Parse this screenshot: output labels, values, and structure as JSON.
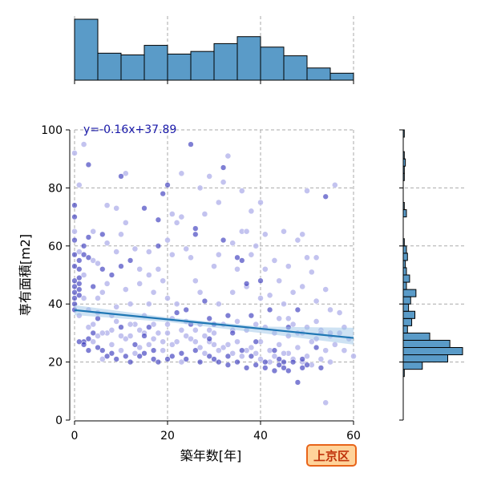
{
  "chart_data": {
    "type": "scatter",
    "title": "",
    "xlabel": "築年数[年]",
    "ylabel": "専有面積[m2]",
    "xlim": [
      0,
      60
    ],
    "ylim": [
      0,
      100
    ],
    "xticks": [
      0,
      20,
      40,
      60
    ],
    "yticks": [
      0,
      20,
      40,
      60,
      80,
      100
    ],
    "grid": true,
    "equation_text": "y=-0.16x+37.89",
    "badge_text": "上京区",
    "regression": {
      "slope": -0.16,
      "intercept": 37.89,
      "ci_band": {
        "x": [
          0,
          20,
          40,
          60
        ],
        "lower": [
          36.2,
          33.8,
          30.0,
          26.0
        ],
        "upper": [
          39.6,
          35.4,
          32.2,
          31.8
        ]
      }
    },
    "top_histogram": {
      "bins": [
        0,
        5,
        10,
        15,
        20,
        25,
        30,
        35,
        40,
        45,
        50,
        55,
        60
      ],
      "counts": [
        70,
        31,
        29,
        40,
        30,
        33,
        42,
        50,
        38,
        28,
        14,
        8
      ]
    },
    "right_histogram": {
      "bins": [
        0,
        2.5,
        5,
        7.5,
        10,
        12.5,
        15,
        17.5,
        20,
        22.5,
        25,
        27.5,
        30,
        32.5,
        35,
        37.5,
        40,
        42.5,
        45,
        47.5,
        50,
        52.5,
        55,
        57.5,
        60,
        62.5,
        65,
        67.5,
        70,
        72.5,
        75,
        77.5,
        80,
        82.5,
        85,
        87.5,
        90,
        92.5,
        95,
        97.5,
        100
      ],
      "counts": [
        0,
        0,
        0,
        0,
        0,
        0,
        1,
        18,
        42,
        56,
        44,
        25,
        4,
        8,
        11,
        5,
        7,
        12,
        3,
        6,
        3,
        2,
        4,
        3,
        1,
        0,
        0,
        0,
        3,
        1,
        0,
        0,
        0,
        1,
        1,
        2,
        1,
        0,
        0,
        1
      ],
      "max_count": 56
    },
    "points_dark": [
      [
        0,
        48
      ],
      [
        0,
        46
      ],
      [
        0,
        44
      ],
      [
        0,
        42
      ],
      [
        0,
        40
      ],
      [
        0,
        38
      ],
      [
        1,
        49
      ],
      [
        1,
        47
      ],
      [
        1,
        45
      ],
      [
        1,
        43
      ],
      [
        0,
        53
      ],
      [
        0,
        57
      ],
      [
        0,
        70
      ],
      [
        0,
        74
      ],
      [
        2,
        60
      ],
      [
        2,
        57
      ],
      [
        3,
        56
      ],
      [
        3,
        88
      ],
      [
        3,
        24
      ],
      [
        2,
        27
      ],
      [
        5,
        35
      ],
      [
        6,
        52
      ],
      [
        8,
        50
      ],
      [
        10,
        53
      ],
      [
        12,
        55
      ],
      [
        13,
        26
      ],
      [
        15,
        29
      ],
      [
        10,
        32
      ],
      [
        10,
        84
      ],
      [
        16,
        32
      ],
      [
        17,
        24
      ],
      [
        18,
        60
      ],
      [
        19,
        78
      ],
      [
        22,
        37
      ],
      [
        24,
        38
      ],
      [
        25,
        33
      ],
      [
        26,
        66
      ],
      [
        26,
        64
      ],
      [
        25,
        95
      ],
      [
        28,
        41
      ],
      [
        29,
        35
      ],
      [
        29,
        28
      ],
      [
        30,
        33
      ],
      [
        32,
        62
      ],
      [
        33,
        36
      ],
      [
        34,
        30
      ],
      [
        35,
        56
      ],
      [
        36,
        55
      ],
      [
        37,
        47
      ],
      [
        38,
        36
      ],
      [
        40,
        48
      ],
      [
        42,
        38
      ],
      [
        43,
        24
      ],
      [
        44,
        21
      ],
      [
        45,
        20
      ],
      [
        46,
        32
      ],
      [
        48,
        38
      ],
      [
        49,
        21
      ],
      [
        50,
        19
      ],
      [
        52,
        25
      ],
      [
        54,
        77
      ],
      [
        15,
        73
      ],
      [
        18,
        69
      ],
      [
        20,
        81
      ],
      [
        32,
        87
      ],
      [
        39,
        27
      ],
      [
        43,
        17
      ],
      [
        47,
        20
      ],
      [
        49,
        18
      ],
      [
        53,
        18
      ],
      [
        33,
        19
      ],
      [
        37,
        18
      ],
      [
        41,
        20
      ],
      [
        45,
        18
      ],
      [
        48,
        13
      ],
      [
        5,
        25
      ],
      [
        8,
        23
      ],
      [
        11,
        22
      ],
      [
        14,
        22
      ],
      [
        17,
        21
      ],
      [
        20,
        21
      ],
      [
        23,
        23
      ],
      [
        26,
        24
      ],
      [
        29,
        22
      ],
      [
        31,
        20
      ],
      [
        35,
        20
      ],
      [
        39,
        19
      ],
      [
        1,
        27
      ],
      [
        2,
        26
      ],
      [
        3,
        28
      ],
      [
        4,
        30
      ],
      [
        6,
        24
      ],
      [
        7,
        22
      ],
      [
        9,
        21
      ],
      [
        12,
        20
      ],
      [
        15,
        23
      ],
      [
        18,
        20
      ],
      [
        21,
        22
      ],
      [
        24,
        21
      ],
      [
        27,
        20
      ],
      [
        30,
        21
      ],
      [
        33,
        22
      ],
      [
        36,
        24
      ],
      [
        38,
        22
      ],
      [
        41,
        18
      ],
      [
        44,
        19
      ],
      [
        46,
        17
      ],
      [
        1,
        52
      ],
      [
        1,
        55
      ],
      [
        0,
        62
      ],
      [
        3,
        63
      ],
      [
        4,
        46
      ],
      [
        6,
        64
      ]
    ],
    "points_light": [
      [
        0,
        92
      ],
      [
        2,
        95
      ],
      [
        1,
        81
      ],
      [
        4,
        65
      ],
      [
        5,
        42
      ],
      [
        6,
        44
      ],
      [
        7,
        47
      ],
      [
        8,
        36
      ],
      [
        9,
        39
      ],
      [
        9,
        58
      ],
      [
        11,
        45
      ],
      [
        12,
        40
      ],
      [
        13,
        33
      ],
      [
        14,
        47
      ],
      [
        14,
        52
      ],
      [
        16,
        40
      ],
      [
        17,
        44
      ],
      [
        18,
        52
      ],
      [
        19,
        48
      ],
      [
        20,
        42
      ],
      [
        21,
        57
      ],
      [
        21,
        71
      ],
      [
        22,
        68
      ],
      [
        23,
        85
      ],
      [
        24,
        59
      ],
      [
        25,
        56
      ],
      [
        26,
        48
      ],
      [
        27,
        44
      ],
      [
        27,
        80
      ],
      [
        28,
        71
      ],
      [
        29,
        84
      ],
      [
        30,
        53
      ],
      [
        31,
        40
      ],
      [
        31,
        75
      ],
      [
        32,
        82
      ],
      [
        33,
        91
      ],
      [
        34,
        44
      ],
      [
        34,
        61
      ],
      [
        35,
        52
      ],
      [
        36,
        65
      ],
      [
        36,
        79
      ],
      [
        37,
        46
      ],
      [
        38,
        57
      ],
      [
        38,
        72
      ],
      [
        39,
        60
      ],
      [
        40,
        75
      ],
      [
        41,
        64
      ],
      [
        41,
        52
      ],
      [
        42,
        43
      ],
      [
        43,
        55
      ],
      [
        44,
        48
      ],
      [
        45,
        40
      ],
      [
        45,
        65
      ],
      [
        46,
        35
      ],
      [
        47,
        44
      ],
      [
        48,
        62
      ],
      [
        48,
        30
      ],
      [
        49,
        46
      ],
      [
        50,
        79
      ],
      [
        50,
        56
      ],
      [
        51,
        51
      ],
      [
        52,
        41
      ],
      [
        52,
        34
      ],
      [
        53,
        31
      ],
      [
        54,
        45
      ],
      [
        55,
        38
      ],
      [
        56,
        81
      ],
      [
        57,
        37
      ],
      [
        58,
        32
      ],
      [
        59,
        28
      ],
      [
        60,
        22
      ],
      [
        54,
        6
      ],
      [
        7,
        74
      ],
      [
        9,
        73
      ],
      [
        11,
        85
      ],
      [
        13,
        59
      ],
      [
        15,
        36
      ],
      [
        16,
        50
      ],
      [
        19,
        27
      ],
      [
        22,
        40
      ],
      [
        24,
        29
      ],
      [
        26,
        27
      ],
      [
        28,
        23
      ],
      [
        30,
        26
      ],
      [
        32,
        25
      ],
      [
        34,
        23
      ],
      [
        36,
        22
      ],
      [
        38,
        25
      ],
      [
        40,
        27
      ],
      [
        42,
        24
      ],
      [
        44,
        26
      ],
      [
        46,
        23
      ],
      [
        48,
        25
      ],
      [
        50,
        22
      ],
      [
        52,
        28
      ],
      [
        54,
        24
      ],
      [
        56,
        26
      ],
      [
        58,
        24
      ],
      [
        3,
        32
      ],
      [
        4,
        27
      ],
      [
        5,
        29
      ],
      [
        6,
        21
      ],
      [
        7,
        30
      ],
      [
        8,
        26
      ],
      [
        10,
        24
      ],
      [
        11,
        28
      ],
      [
        12,
        29
      ],
      [
        13,
        23
      ],
      [
        14,
        25
      ],
      [
        16,
        26
      ],
      [
        17,
        28
      ],
      [
        19,
        24
      ],
      [
        20,
        30
      ],
      [
        21,
        26
      ],
      [
        22,
        27
      ],
      [
        23,
        20
      ],
      [
        25,
        28
      ],
      [
        27,
        25
      ],
      [
        28,
        29
      ],
      [
        29,
        27
      ],
      [
        31,
        24
      ],
      [
        33,
        26
      ],
      [
        35,
        27
      ],
      [
        37,
        24
      ],
      [
        39,
        23
      ],
      [
        40,
        21
      ],
      [
        42,
        20
      ],
      [
        43,
        22
      ],
      [
        45,
        23
      ],
      [
        47,
        21
      ],
      [
        49,
        20
      ],
      [
        51,
        19
      ],
      [
        53,
        21
      ],
      [
        55,
        20
      ],
      [
        1,
        36
      ],
      [
        2,
        42
      ],
      [
        3,
        38
      ],
      [
        4,
        33
      ],
      [
        5,
        37
      ],
      [
        6,
        30
      ],
      [
        8,
        31
      ],
      [
        9,
        34
      ],
      [
        10,
        29
      ],
      [
        12,
        33
      ],
      [
        14,
        31
      ],
      [
        15,
        30
      ],
      [
        17,
        33
      ],
      [
        18,
        30
      ],
      [
        20,
        33
      ],
      [
        21,
        35
      ],
      [
        23,
        31
      ],
      [
        24,
        34
      ],
      [
        26,
        31
      ],
      [
        27,
        33
      ],
      [
        29,
        31
      ],
      [
        30,
        30
      ],
      [
        32,
        33
      ],
      [
        34,
        31
      ],
      [
        35,
        34
      ],
      [
        37,
        31
      ],
      [
        39,
        33
      ],
      [
        41,
        32
      ],
      [
        43,
        30
      ],
      [
        44,
        35
      ],
      [
        46,
        29
      ],
      [
        47,
        33
      ],
      [
        49,
        30
      ],
      [
        50,
        32
      ],
      [
        51,
        27
      ],
      [
        53,
        30
      ],
      [
        55,
        29
      ],
      [
        57,
        30
      ],
      [
        0,
        65
      ],
      [
        1,
        58
      ],
      [
        2,
        50
      ],
      [
        4,
        55
      ],
      [
        5,
        54
      ],
      [
        7,
        61
      ],
      [
        10,
        64
      ],
      [
        11,
        68
      ],
      [
        16,
        58
      ],
      [
        20,
        62
      ],
      [
        23,
        70
      ],
      [
        31,
        57
      ],
      [
        37,
        65
      ],
      [
        40,
        42
      ],
      [
        46,
        53
      ],
      [
        49,
        64
      ],
      [
        52,
        56
      ],
      [
        55,
        30
      ]
    ]
  },
  "style": {
    "bar_fill": "#5a9bc8",
    "bar_stroke": "#000000",
    "grid_color": "#aaaaaa",
    "point_dark": "#2a2ab8",
    "point_light": "#b8b8ec",
    "regression_line": "#1f77b4",
    "ci_band": "#9ec5e8",
    "equation_color": "#1a1aaa",
    "badge_bg": "#ffd39a",
    "badge_border": "#e8641a",
    "badge_text_color": "#c0330b"
  }
}
